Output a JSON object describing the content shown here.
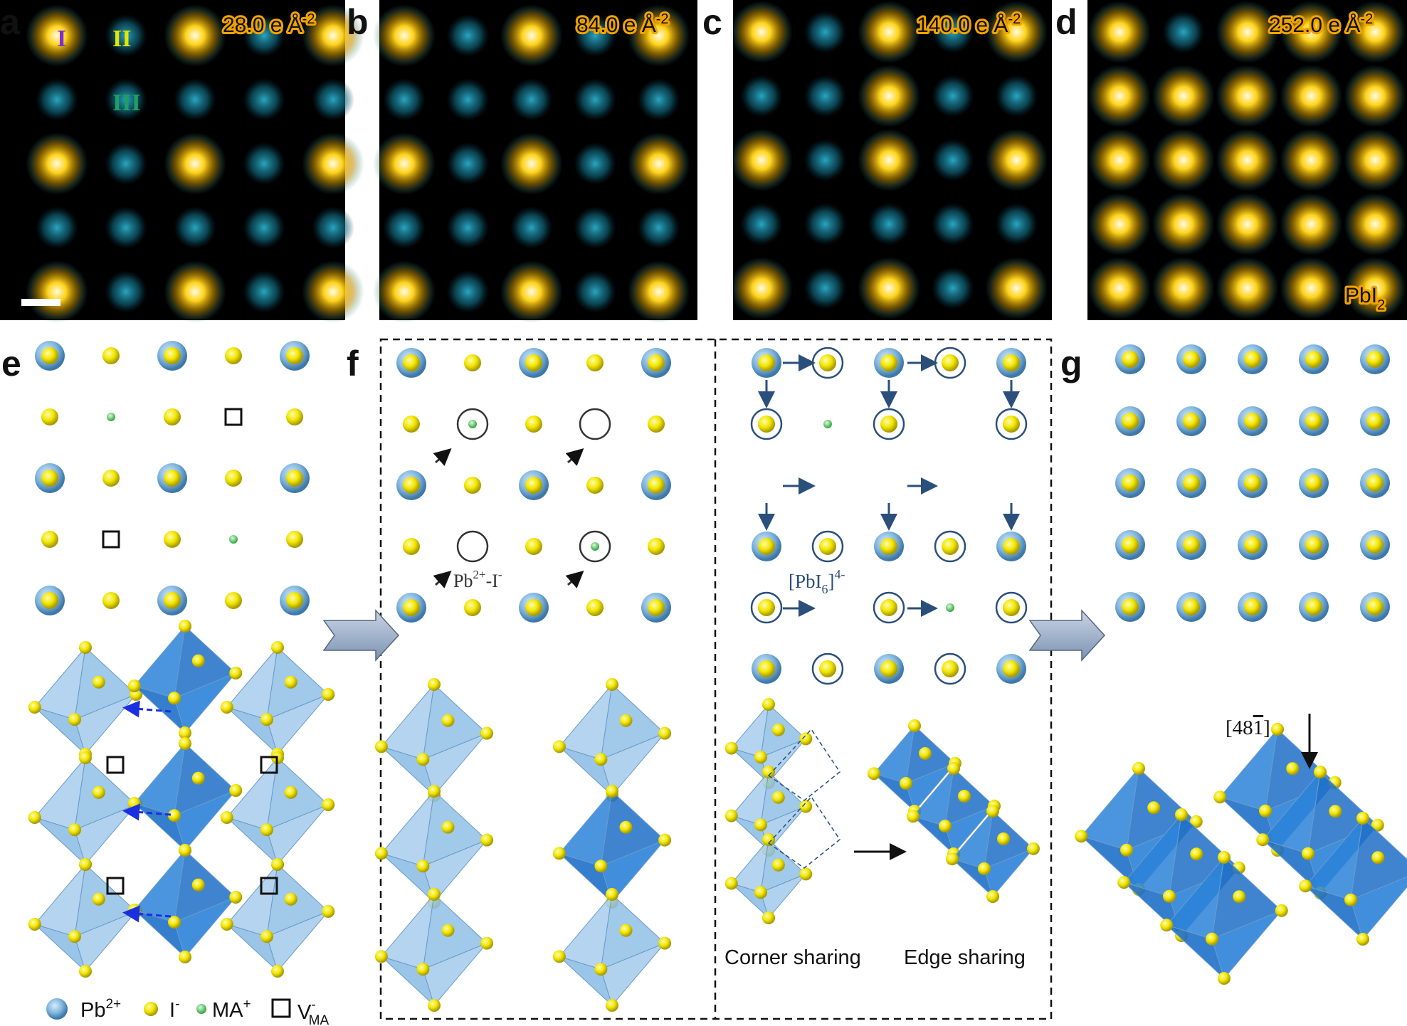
{
  "panels": {
    "a": {
      "letter": "a",
      "dose": "28.0 e Å",
      "dose_exp": "-2"
    },
    "b": {
      "letter": "b",
      "dose": "84.0 e Å",
      "dose_exp": "-2"
    },
    "c": {
      "letter": "c",
      "dose": "140.0 e Å",
      "dose_exp": "-2"
    },
    "d": {
      "letter": "d",
      "dose": "252.0 e Å",
      "dose_exp": "-2",
      "phase": "PbI",
      "phase_sub": "2"
    },
    "e": {
      "letter": "e"
    },
    "f": {
      "letter": "f"
    },
    "g": {
      "letter": "g"
    }
  },
  "site_labels": {
    "I": "I",
    "II": "II",
    "III": "III"
  },
  "site_colors": {
    "I": "#7b2fd8",
    "II": "#e6e600",
    "III": "#1fa060"
  },
  "annotations": {
    "pb_i": "Pb",
    "pb_i_sup": "2+",
    "pb_i_tail": "-I",
    "pb_i_tail_sup": "-",
    "pbi6": "[PbI",
    "pbi6_sub": "6",
    "pbi6_close": "]",
    "pbi6_sup": "4-",
    "corner_sharing": "Corner sharing",
    "edge_sharing": "Edge sharing",
    "direction": "[48",
    "direction_bar": "1",
    "direction_close": "]"
  },
  "legend": [
    {
      "symbol": "pb-sphere",
      "label": "Pb",
      "sup": "2+"
    },
    {
      "symbol": "i-sphere",
      "label": "I",
      "sup": "-"
    },
    {
      "symbol": "ma-sphere",
      "label": "MA",
      "sup": "+"
    },
    {
      "symbol": "vacancy-square",
      "label": "V",
      "sup": "-",
      "sub": "MA"
    }
  ],
  "colors": {
    "pb": "#7fb4dd",
    "iodine": "#f2e600",
    "ma": "#5fcf6a",
    "octa_light": "#8fbfe6",
    "octa_dark": "#1f6fc8",
    "arrow": "#2a4f7a",
    "haadf_bg": "#000000",
    "haadf_cyan": "#1e8fa8",
    "haadf_gold": "#f2b800"
  }
}
